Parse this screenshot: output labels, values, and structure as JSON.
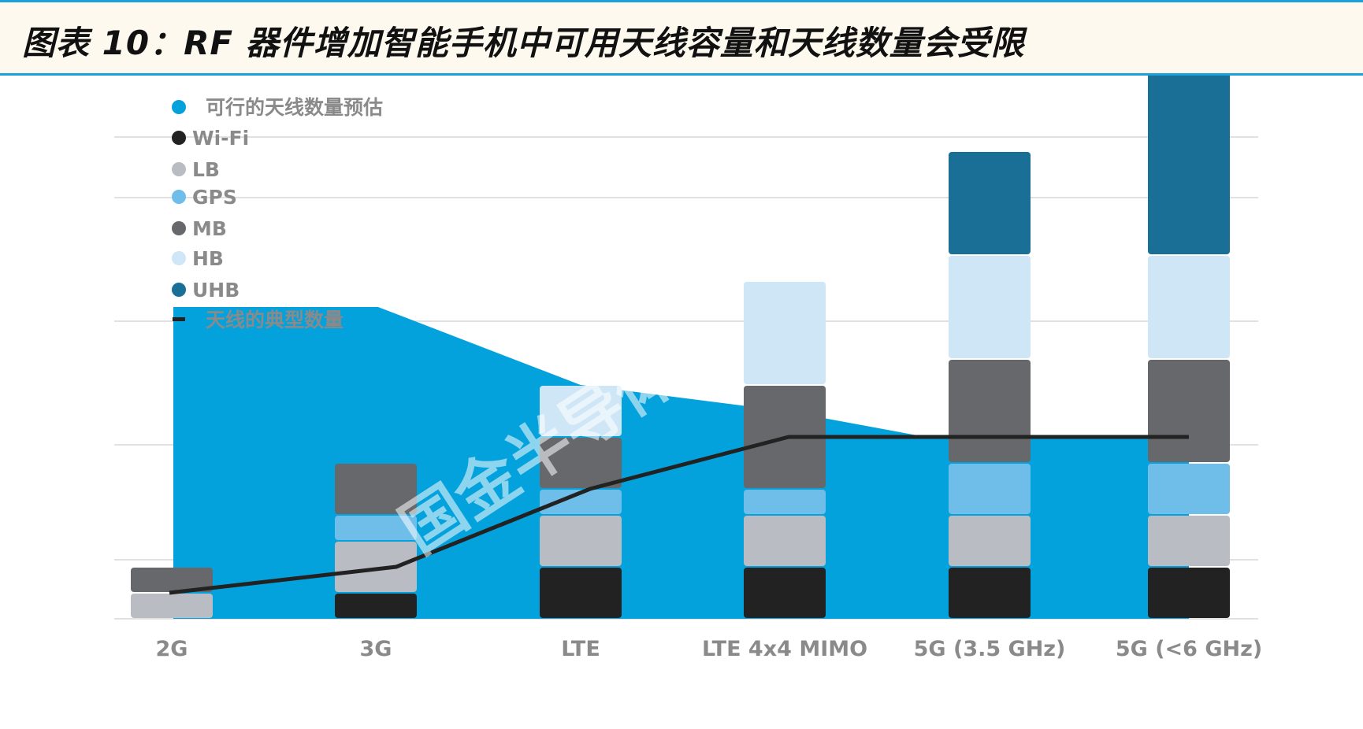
{
  "title": "图表 10：RF 器件增加智能手机中可用天线容量和天线数量会受限",
  "watermark": "国金半导体",
  "colors": {
    "background": "#fdf9ee",
    "rule": "#1aa0db",
    "area": "#04a2dc",
    "line": "#222222",
    "grid": "#d7d7d7"
  },
  "chart_data": {
    "type": "bar",
    "stacked": true,
    "categories": [
      "2G",
      "3G",
      "LTE",
      "LTE 4x4 MIMO",
      "5G (3.5 GHz)",
      "5G (<6 GHz)"
    ],
    "series": [
      {
        "name": "Wi-Fi",
        "color": "#222222",
        "values": [
          0,
          1,
          2,
          2,
          2,
          2
        ]
      },
      {
        "name": "LB",
        "color": "#b9bcc3",
        "values": [
          1,
          2,
          2,
          2,
          2,
          2
        ]
      },
      {
        "name": "GPS",
        "color": "#6fbde9",
        "values": [
          0,
          1,
          1,
          1,
          2,
          2
        ]
      },
      {
        "name": "MB",
        "color": "#67686b",
        "values": [
          1,
          2,
          2,
          4,
          4,
          4
        ]
      },
      {
        "name": "HB",
        "color": "#cfe6f7",
        "values": [
          0,
          0,
          2,
          4,
          4,
          4
        ]
      },
      {
        "name": "UHB",
        "color": "#196f96",
        "values": [
          0,
          0,
          0,
          0,
          4,
          8
        ]
      }
    ],
    "area_series": {
      "name": "可行的天线数量预估",
      "color": "#04a2dc",
      "values": [
        12,
        12,
        9,
        8,
        7,
        7
      ]
    },
    "line_series": {
      "name": "天线的典型数量",
      "color": "#222222",
      "values": [
        1,
        2,
        5,
        7,
        7,
        7
      ]
    },
    "legend": [
      "可行的天线数量预估",
      "Wi-Fi",
      "LB",
      "GPS",
      "MB",
      "HB",
      "UHB",
      "天线的典型数量"
    ],
    "legend_position": "top-left",
    "ylim": [
      0,
      22
    ],
    "grid": true,
    "xlabel": "",
    "ylabel": ""
  }
}
